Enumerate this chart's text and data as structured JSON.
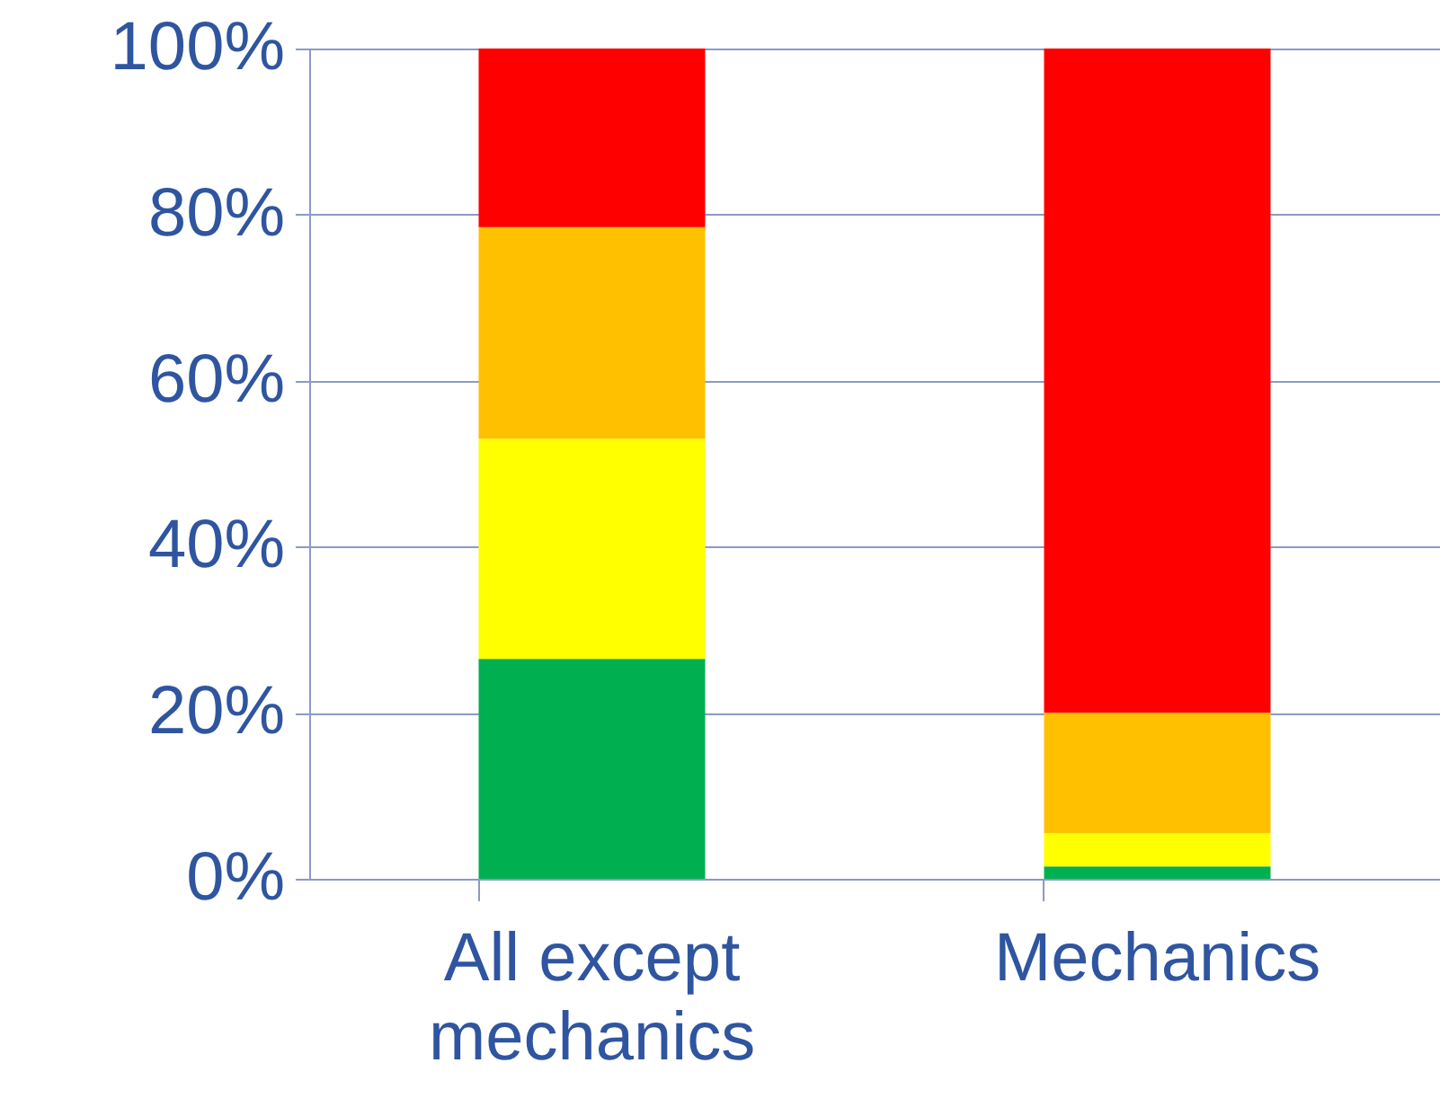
{
  "chart_data": {
    "type": "bar",
    "stacked": true,
    "categories": [
      "All except\nmechanics",
      "Mechanics"
    ],
    "series": [
      {
        "color": "#00b050",
        "values": [
          26.5,
          1.5
        ]
      },
      {
        "color": "#ffff00",
        "values": [
          26.5,
          4
        ]
      },
      {
        "color": "#ffc000",
        "values": [
          25.5,
          14.5
        ]
      },
      {
        "color": "#ff0000",
        "values": [
          21.5,
          80
        ]
      }
    ],
    "ylim": [
      0,
      100
    ],
    "yticks": [
      {
        "value": 0,
        "label": "0%"
      },
      {
        "value": 20,
        "label": "20%"
      },
      {
        "value": 40,
        "label": "40%"
      },
      {
        "value": 60,
        "label": "60%"
      },
      {
        "value": 80,
        "label": "80%"
      },
      {
        "value": 100,
        "label": "100%"
      }
    ],
    "grid": "y"
  }
}
